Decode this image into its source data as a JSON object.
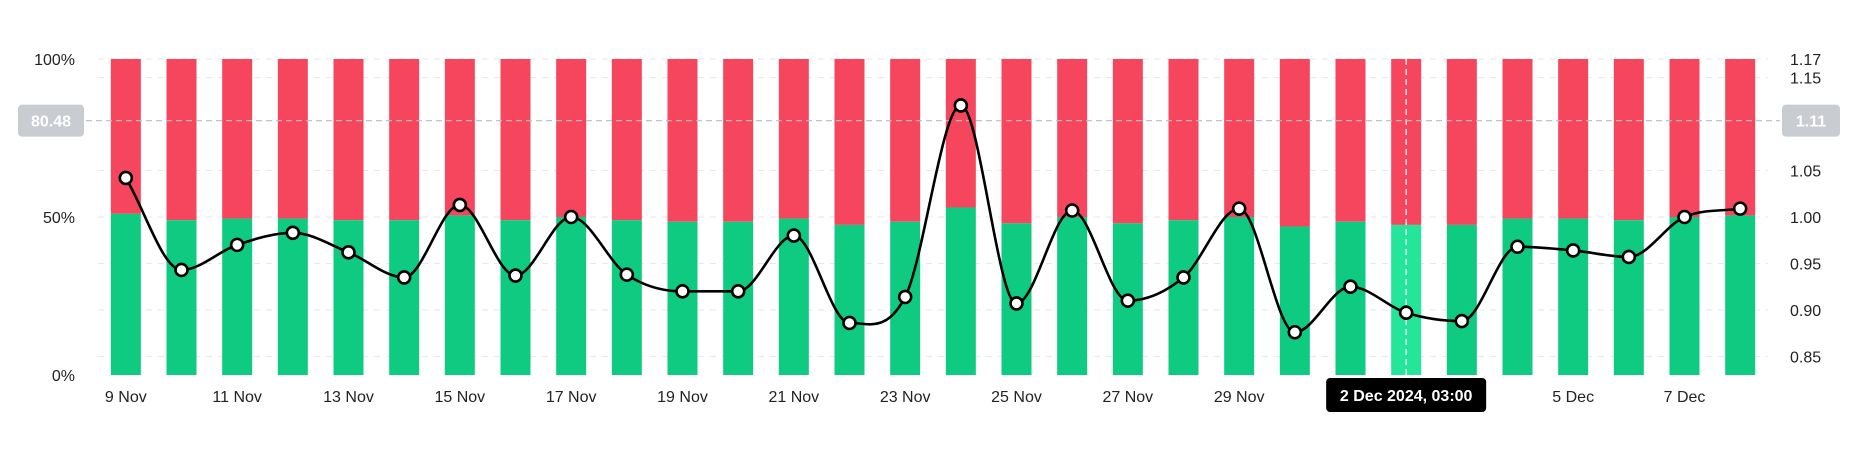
{
  "chart_data": {
    "type": "bar",
    "categories": [
      "9 Nov",
      "10 Nov",
      "11 Nov",
      "12 Nov",
      "13 Nov",
      "14 Nov",
      "15 Nov",
      "16 Nov",
      "17 Nov",
      "18 Nov",
      "19 Nov",
      "20 Nov",
      "21 Nov",
      "22 Nov",
      "23 Nov",
      "24 Nov",
      "25 Nov",
      "26 Nov",
      "27 Nov",
      "28 Nov",
      "29 Nov",
      "30 Nov",
      "1 Dec",
      "2 Dec",
      "3 Dec",
      "4 Dec",
      "5 Dec",
      "6 Dec",
      "7 Dec",
      "8 Dec"
    ],
    "x_tick_labels": [
      "9 Nov",
      "11 Nov",
      "13 Nov",
      "15 Nov",
      "17 Nov",
      "19 Nov",
      "21 Nov",
      "23 Nov",
      "25 Nov",
      "27 Nov",
      "29 Nov",
      "5 Dec",
      "7 Dec"
    ],
    "x_tick_indices": [
      0,
      2,
      4,
      6,
      8,
      10,
      12,
      14,
      16,
      18,
      20,
      26,
      28
    ],
    "series": [
      {
        "role": "long",
        "axis": "left",
        "color": "#0ecb81",
        "values": [
          51,
          49,
          49.5,
          49.5,
          49,
          49,
          50.5,
          49,
          50,
          49,
          48.5,
          48.5,
          49.5,
          47.5,
          48.5,
          53,
          48,
          50,
          48,
          49,
          50,
          47,
          48.5,
          47.5,
          47.5,
          49.5,
          49.5,
          49,
          50,
          50.5
        ]
      },
      {
        "role": "short",
        "axis": "left",
        "color": "#f6465d",
        "values": [
          49,
          51,
          50.5,
          50.5,
          51,
          51,
          49.5,
          51,
          50,
          51,
          51.5,
          51.5,
          50.5,
          52.5,
          51.5,
          47,
          52,
          50,
          52,
          51,
          50,
          53,
          51.5,
          52.5,
          52.5,
          50.5,
          50.5,
          51,
          50,
          49.5
        ]
      },
      {
        "role": "ratio",
        "axis": "right",
        "type": "line",
        "color": "#000000",
        "values": [
          1.042,
          0.943,
          0.97,
          0.983,
          0.962,
          0.935,
          1.013,
          0.937,
          1.0,
          0.938,
          0.92,
          0.92,
          0.98,
          0.886,
          0.914,
          1.12,
          0.907,
          1.007,
          0.91,
          0.935,
          1.009,
          0.876,
          0.925,
          0.897,
          0.888,
          0.968,
          0.964,
          0.957,
          1.0,
          1.009
        ]
      }
    ],
    "left_axis": {
      "ticks": [
        "100%",
        "50%",
        "0%"
      ],
      "tick_values": [
        100,
        50,
        0
      ],
      "ylim": [
        0,
        100
      ]
    },
    "right_axis": {
      "ticks": [
        "1.17",
        "1.15",
        "1.05",
        "1.00",
        "0.95",
        "0.90",
        "0.85"
      ],
      "tick_values": [
        1.17,
        1.15,
        1.05,
        1.0,
        0.95,
        0.9,
        0.85
      ],
      "ylim": [
        0.83,
        1.17
      ]
    },
    "crosshair": {
      "index": 23,
      "left_value_label": "80.48",
      "right_value_label": "1.11",
      "value_level": 80.48,
      "date_label": "2 Dec 2024, 03:00"
    },
    "grid": true
  }
}
